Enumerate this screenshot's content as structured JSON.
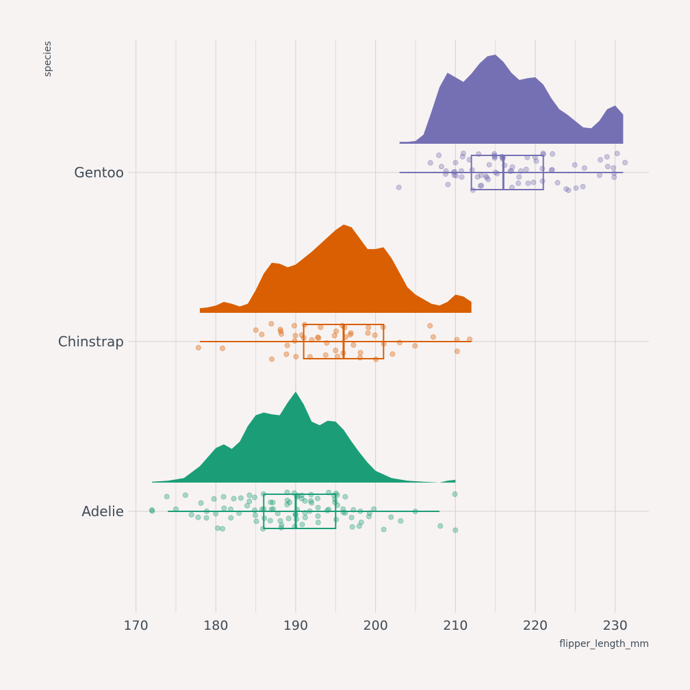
{
  "chart_data": {
    "type": "raincloud",
    "xlabel": "flipper_length_mm",
    "ylabel": "species",
    "xlim": [
      167,
      234
    ],
    "x_ticks": [
      170,
      180,
      190,
      200,
      210,
      220,
      230
    ],
    "grid": true,
    "categories": [
      "Adelie",
      "Chinstrap",
      "Gentoo"
    ],
    "series": [
      {
        "name": "Adelie",
        "color": "#1b9e77",
        "box": {
          "min": 174,
          "q1": 186,
          "median": 190,
          "q3": 195,
          "max": 208
        },
        "outliers": [
          172,
          210
        ],
        "density": [
          [
            172,
            0.01
          ],
          [
            174,
            0.02
          ],
          [
            176,
            0.05
          ],
          [
            178,
            0.18
          ],
          [
            180,
            0.38
          ],
          [
            181,
            0.42
          ],
          [
            182,
            0.37
          ],
          [
            183,
            0.45
          ],
          [
            184,
            0.62
          ],
          [
            185,
            0.74
          ],
          [
            186,
            0.77
          ],
          [
            187,
            0.75
          ],
          [
            188,
            0.74
          ],
          [
            189,
            0.88
          ],
          [
            190,
            1.0
          ],
          [
            191,
            0.86
          ],
          [
            192,
            0.67
          ],
          [
            193,
            0.63
          ],
          [
            194,
            0.68
          ],
          [
            195,
            0.67
          ],
          [
            196,
            0.58
          ],
          [
            197,
            0.45
          ],
          [
            198,
            0.33
          ],
          [
            199,
            0.22
          ],
          [
            200,
            0.13
          ],
          [
            202,
            0.05
          ],
          [
            204,
            0.02
          ],
          [
            206,
            0.01
          ],
          [
            208,
            0.0
          ],
          [
            209,
            0.02
          ],
          [
            210,
            0.03
          ]
        ],
        "points": [
          172,
          174,
          175,
          176,
          177,
          178,
          178,
          179,
          179,
          180,
          180,
          180,
          181,
          181,
          181,
          182,
          182,
          182,
          183,
          183,
          184,
          184,
          184,
          185,
          185,
          185,
          185,
          186,
          186,
          186,
          186,
          186,
          187,
          187,
          187,
          187,
          187,
          188,
          188,
          188,
          188,
          189,
          189,
          189,
          189,
          189,
          190,
          190,
          190,
          190,
          190,
          190,
          190,
          190,
          191,
          191,
          191,
          191,
          191,
          191,
          192,
          192,
          192,
          192,
          193,
          193,
          193,
          193,
          194,
          194,
          194,
          195,
          195,
          195,
          195,
          195,
          195,
          195,
          196,
          196,
          196,
          196,
          197,
          197,
          197,
          198,
          198,
          198,
          199,
          199,
          200,
          201,
          202,
          203,
          205,
          208,
          210
        ]
      },
      {
        "name": "Chinstrap",
        "color": "#d95f02",
        "box": {
          "min": 178,
          "q1": 191,
          "median": 196,
          "q3": 201,
          "max": 212
        },
        "outliers": [],
        "density": [
          [
            178,
            0.05
          ],
          [
            179,
            0.06
          ],
          [
            180,
            0.08
          ],
          [
            181,
            0.12
          ],
          [
            182,
            0.1
          ],
          [
            183,
            0.07
          ],
          [
            184,
            0.1
          ],
          [
            185,
            0.25
          ],
          [
            186,
            0.43
          ],
          [
            187,
            0.55
          ],
          [
            188,
            0.54
          ],
          [
            189,
            0.5
          ],
          [
            190,
            0.53
          ],
          [
            191,
            0.6
          ],
          [
            192,
            0.67
          ],
          [
            193,
            0.75
          ],
          [
            194,
            0.83
          ],
          [
            195,
            0.91
          ],
          [
            196,
            0.97
          ],
          [
            197,
            0.94
          ],
          [
            198,
            0.82
          ],
          [
            199,
            0.7
          ],
          [
            200,
            0.7
          ],
          [
            201,
            0.72
          ],
          [
            202,
            0.6
          ],
          [
            203,
            0.44
          ],
          [
            204,
            0.28
          ],
          [
            205,
            0.2
          ],
          [
            206,
            0.15
          ],
          [
            207,
            0.1
          ],
          [
            208,
            0.08
          ],
          [
            209,
            0.12
          ],
          [
            210,
            0.2
          ],
          [
            211,
            0.18
          ],
          [
            212,
            0.12
          ]
        ],
        "points": [
          178,
          181,
          185,
          186,
          187,
          187,
          188,
          188,
          188,
          189,
          189,
          190,
          190,
          190,
          190,
          191,
          191,
          191,
          192,
          192,
          193,
          193,
          193,
          194,
          194,
          195,
          195,
          195,
          195,
          196,
          196,
          196,
          196,
          197,
          197,
          197,
          198,
          198,
          199,
          199,
          200,
          200,
          201,
          201,
          202,
          203,
          205,
          207,
          207,
          210,
          210,
          212
        ]
      },
      {
        "name": "Gentoo",
        "color": "#7570b3",
        "box": {
          "min": 203,
          "q1": 212,
          "median": 216,
          "q3": 221,
          "max": 231
        },
        "outliers": [],
        "density": [
          [
            203,
            0.02
          ],
          [
            204,
            0.02
          ],
          [
            205,
            0.03
          ],
          [
            206,
            0.1
          ],
          [
            207,
            0.35
          ],
          [
            208,
            0.62
          ],
          [
            209,
            0.78
          ],
          [
            210,
            0.73
          ],
          [
            211,
            0.68
          ],
          [
            212,
            0.77
          ],
          [
            213,
            0.88
          ],
          [
            214,
            0.96
          ],
          [
            215,
            0.98
          ],
          [
            216,
            0.9
          ],
          [
            217,
            0.78
          ],
          [
            218,
            0.7
          ],
          [
            219,
            0.72
          ],
          [
            220,
            0.73
          ],
          [
            221,
            0.65
          ],
          [
            222,
            0.5
          ],
          [
            223,
            0.38
          ],
          [
            224,
            0.32
          ],
          [
            225,
            0.25
          ],
          [
            226,
            0.18
          ],
          [
            227,
            0.17
          ],
          [
            228,
            0.25
          ],
          [
            229,
            0.38
          ],
          [
            230,
            0.42
          ],
          [
            231,
            0.32
          ]
        ],
        "points": [
          203,
          207,
          208,
          208,
          209,
          209,
          209,
          210,
          210,
          210,
          210,
          210,
          211,
          211,
          211,
          211,
          212,
          212,
          212,
          213,
          213,
          213,
          213,
          213,
          214,
          214,
          214,
          214,
          215,
          215,
          215,
          215,
          215,
          215,
          216,
          216,
          216,
          216,
          216,
          217,
          217,
          217,
          217,
          218,
          218,
          218,
          219,
          219,
          219,
          220,
          220,
          220,
          221,
          221,
          221,
          221,
          222,
          222,
          222,
          223,
          224,
          224,
          225,
          225,
          226,
          226,
          228,
          228,
          229,
          229,
          230,
          230,
          230,
          230,
          231
        ]
      }
    ]
  }
}
